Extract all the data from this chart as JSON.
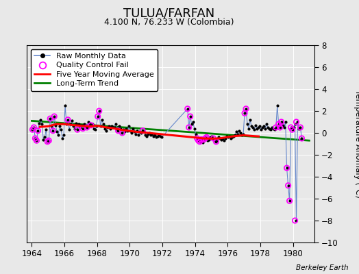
{
  "title": "TULUA/FARFAN",
  "subtitle": "4.100 N, 76.233 W (Colombia)",
  "ylabel": "Temperature Anomaly (°C)",
  "credit": "Berkeley Earth",
  "xlim": [
    1963.7,
    1981.3
  ],
  "ylim": [
    -10,
    8
  ],
  "yticks": [
    -10,
    -8,
    -6,
    -4,
    -2,
    0,
    2,
    4,
    6,
    8
  ],
  "xticks": [
    1964,
    1966,
    1968,
    1970,
    1972,
    1974,
    1976,
    1978,
    1980
  ],
  "bg_color": "#e8e8e8",
  "plot_bg": "#e8e8e8",
  "raw_line_color": "#6688cc",
  "raw_dot_color": "black",
  "qc_fail_color": "magenta",
  "moving_avg_color": "red",
  "trend_color": "green",
  "raw_x": [
    1964.042,
    1964.125,
    1964.208,
    1964.292,
    1964.375,
    1964.458,
    1964.542,
    1964.625,
    1964.708,
    1964.792,
    1964.875,
    1964.958,
    1965.042,
    1965.125,
    1965.208,
    1965.292,
    1965.375,
    1965.458,
    1965.542,
    1965.625,
    1965.708,
    1965.792,
    1965.875,
    1965.958,
    1966.042,
    1966.125,
    1966.208,
    1966.292,
    1966.375,
    1966.458,
    1966.542,
    1966.625,
    1966.708,
    1966.792,
    1966.875,
    1966.958,
    1967.042,
    1967.125,
    1967.208,
    1967.292,
    1967.375,
    1967.458,
    1967.542,
    1967.625,
    1967.708,
    1967.792,
    1967.875,
    1967.958,
    1968.042,
    1968.125,
    1968.208,
    1968.292,
    1968.375,
    1968.458,
    1968.542,
    1968.625,
    1968.708,
    1968.792,
    1968.875,
    1968.958,
    1969.042,
    1969.125,
    1969.208,
    1969.292,
    1969.375,
    1969.458,
    1969.542,
    1969.625,
    1969.708,
    1969.792,
    1969.875,
    1969.958,
    1970.042,
    1970.125,
    1970.208,
    1970.292,
    1970.375,
    1970.458,
    1970.542,
    1970.625,
    1970.708,
    1970.792,
    1970.875,
    1970.958,
    1971.042,
    1971.125,
    1971.208,
    1971.292,
    1971.375,
    1971.458,
    1971.542,
    1971.625,
    1971.708,
    1971.792,
    1971.875,
    1971.958,
    1973.542,
    1973.625,
    1973.708,
    1973.792,
    1973.875,
    1973.958,
    1974.042,
    1974.125,
    1974.208,
    1974.292,
    1974.375,
    1974.458,
    1974.542,
    1974.625,
    1974.708,
    1974.792,
    1974.875,
    1974.958,
    1975.042,
    1975.125,
    1975.208,
    1975.292,
    1975.375,
    1975.458,
    1975.542,
    1975.625,
    1975.708,
    1975.792,
    1975.875,
    1975.958,
    1976.042,
    1976.125,
    1976.208,
    1976.292,
    1976.375,
    1976.458,
    1976.542,
    1976.625,
    1976.708,
    1976.792,
    1976.875,
    1976.958,
    1977.042,
    1977.125,
    1977.208,
    1977.292,
    1977.375,
    1977.458,
    1977.542,
    1977.625,
    1977.708,
    1977.792,
    1977.875,
    1977.958,
    1978.042,
    1978.125,
    1978.208,
    1978.292,
    1978.375,
    1978.458,
    1978.542,
    1978.625,
    1978.708,
    1978.792,
    1978.875,
    1978.958,
    1979.042,
    1979.125,
    1979.208,
    1979.292,
    1979.375,
    1979.458,
    1979.542,
    1979.625,
    1979.708,
    1979.792,
    1979.875,
    1979.958,
    1980.042,
    1980.125,
    1980.208,
    1980.292,
    1980.375,
    1980.458,
    1980.542
  ],
  "raw_y": [
    0.3,
    0.5,
    -0.5,
    -0.7,
    0.2,
    0.9,
    1.2,
    0.8,
    -0.6,
    -0.4,
    0.3,
    -0.8,
    -0.7,
    1.3,
    0.6,
    0.2,
    1.5,
    0.7,
    0.1,
    -0.2,
    0.6,
    0.3,
    -0.5,
    -0.2,
    2.5,
    0.8,
    1.2,
    0.3,
    0.8,
    1.1,
    0.6,
    0.4,
    0.9,
    0.3,
    0.8,
    0.5,
    0.7,
    0.4,
    0.8,
    0.6,
    0.5,
    1.0,
    0.9,
    0.7,
    0.8,
    0.4,
    0.3,
    0.6,
    1.5,
    2.0,
    0.6,
    1.2,
    0.8,
    0.4,
    0.2,
    0.5,
    0.6,
    0.4,
    0.6,
    0.5,
    0.5,
    0.8,
    0.4,
    0.2,
    0.6,
    0.4,
    0.0,
    0.3,
    0.1,
    0.4,
    0.2,
    0.6,
    0.2,
    0.0,
    0.4,
    0.1,
    -0.1,
    0.2,
    -0.2,
    0.1,
    0.0,
    0.2,
    0.1,
    -0.2,
    -0.3,
    -0.1,
    0.0,
    -0.2,
    -0.1,
    -0.3,
    -0.2,
    -0.4,
    -0.3,
    -0.2,
    -0.3,
    -0.4,
    2.2,
    0.5,
    1.5,
    0.8,
    1.0,
    0.4,
    -0.1,
    -0.5,
    -0.7,
    -0.8,
    -0.6,
    -0.9,
    -0.6,
    -0.5,
    -0.4,
    -0.7,
    -0.6,
    -0.4,
    -0.3,
    -0.5,
    -0.6,
    -0.8,
    -0.7,
    -0.4,
    -0.5,
    -0.6,
    -0.5,
    -0.7,
    -0.5,
    -0.3,
    -0.4,
    -0.3,
    -0.5,
    -0.4,
    -0.3,
    -0.2,
    0.1,
    -0.1,
    0.2,
    0.0,
    -0.2,
    -0.1,
    1.8,
    2.2,
    0.8,
    0.4,
    1.2,
    0.6,
    0.5,
    0.3,
    0.7,
    0.4,
    0.5,
    0.6,
    0.3,
    0.5,
    0.6,
    0.4,
    0.8,
    0.5,
    0.4,
    0.3,
    0.5,
    0.4,
    0.3,
    0.5,
    2.5,
    0.8,
    0.5,
    1.0,
    0.7,
    0.5,
    1.0,
    -3.2,
    -4.8,
    -6.2,
    0.5,
    0.3,
    0.5,
    0.8,
    -8.0,
    1.0,
    0.4,
    0.5,
    -0.5
  ],
  "qc_fail_x": [
    1964.042,
    1964.125,
    1964.208,
    1964.292,
    1964.375,
    1964.958,
    1965.042,
    1965.125,
    1965.292,
    1965.375,
    1966.208,
    1966.792,
    1967.125,
    1967.375,
    1967.625,
    1968.042,
    1968.125,
    1969.292,
    1969.542,
    1970.792,
    1973.542,
    1973.625,
    1973.708,
    1974.125,
    1974.208,
    1974.292,
    1974.375,
    1974.542,
    1974.625,
    1974.708,
    1975.125,
    1975.292,
    1977.042,
    1977.125,
    1978.958,
    1979.125,
    1979.208,
    1979.292,
    1979.625,
    1979.708,
    1979.792,
    1979.875,
    1979.958,
    1980.125,
    1980.208,
    1980.458,
    1980.542
  ],
  "qc_fail_y": [
    0.3,
    0.5,
    -0.5,
    -0.7,
    0.2,
    -0.8,
    -0.7,
    1.3,
    0.2,
    1.5,
    1.2,
    0.3,
    0.4,
    0.5,
    0.7,
    1.5,
    2.0,
    0.2,
    0.0,
    0.2,
    2.2,
    0.5,
    1.5,
    -0.5,
    -0.7,
    -0.8,
    -0.6,
    -0.6,
    -0.5,
    -0.4,
    -0.5,
    -0.8,
    1.8,
    2.2,
    0.5,
    0.8,
    0.5,
    1.0,
    -3.2,
    -4.8,
    -6.2,
    0.5,
    0.3,
    -8.0,
    1.0,
    0.5,
    -0.5
  ],
  "moving_avg_x": [
    1964.5,
    1965.0,
    1965.5,
    1966.0,
    1966.5,
    1967.0,
    1967.5,
    1968.0,
    1968.5,
    1969.0,
    1969.5,
    1970.0,
    1970.5,
    1971.0,
    1974.0,
    1974.5,
    1975.0,
    1975.5,
    1976.0,
    1976.5,
    1977.0,
    1977.5,
    1977.9
  ],
  "moving_avg_y": [
    0.55,
    0.6,
    0.8,
    0.8,
    0.72,
    0.65,
    0.58,
    0.65,
    0.52,
    0.42,
    0.28,
    0.18,
    0.08,
    0.02,
    -0.42,
    -0.5,
    -0.52,
    -0.5,
    -0.38,
    -0.28,
    -0.22,
    -0.28,
    -0.32
  ],
  "trend_x": [
    1964.0,
    1981.0
  ],
  "trend_y": [
    1.1,
    -0.7
  ]
}
